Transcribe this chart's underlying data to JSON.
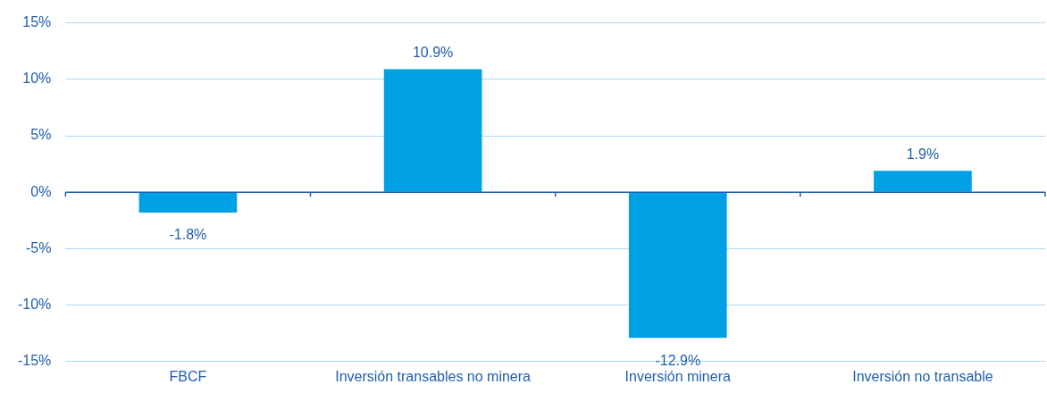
{
  "chart_data": {
    "type": "bar",
    "categories": [
      "FBCF",
      "Inversión transables no minera",
      "Inversión minera",
      "Inversión no transable"
    ],
    "values": [
      -1.8,
      10.9,
      -12.9,
      1.9
    ],
    "value_labels": [
      "-1.8%",
      "10.9%",
      "-12.9%",
      "1.9%"
    ],
    "color": "#00a0e4",
    "ylim": [
      -15,
      15
    ],
    "yticks": [
      {
        "value": -15,
        "label": "-15%"
      },
      {
        "value": -10,
        "label": "-10%"
      },
      {
        "value": -5,
        "label": "-5%"
      },
      {
        "value": 0,
        "label": "0%"
      },
      {
        "value": 5,
        "label": "5%"
      },
      {
        "value": 10,
        "label": "10%"
      },
      {
        "value": 15,
        "label": "15%"
      }
    ],
    "ref_lines": [
      {
        "axis": "y",
        "value": 0,
        "color": "#1f5fae"
      }
    ],
    "grid": "y"
  }
}
